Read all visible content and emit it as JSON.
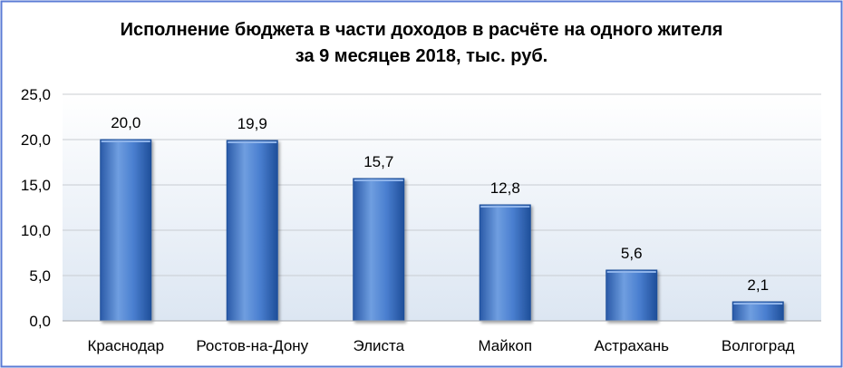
{
  "chart_data": {
    "type": "bar",
    "title_line1": "Исполнение бюджета в части доходов в расчёте на одного жителя",
    "title_line2": "за 9 месяцев 2018, тыс. руб.",
    "categories": [
      "Краснодар",
      "Ростов-на-Дону",
      "Элиста",
      "Майкоп",
      "Астрахань",
      "Волгоград"
    ],
    "values": [
      20.0,
      19.9,
      15.7,
      12.8,
      5.6,
      2.1
    ],
    "data_labels": [
      "20,0",
      "19,9",
      "15,7",
      "12,8",
      "5,6",
      "2,1"
    ],
    "y_ticks": [
      "0,0",
      "5,0",
      "10,0",
      "15,0",
      "20,0",
      "25,0"
    ],
    "ylim": [
      0,
      25
    ],
    "xlabel": "",
    "ylabel": "",
    "grid": true,
    "legend": "none",
    "colors": {
      "bar_light": "#6f9ee0",
      "bar_mid": "#3f72c4",
      "bar_dark": "#1f4f9a",
      "plot_bg_top": "#ffffff",
      "plot_bg_bottom": "#dce6f2",
      "grid": "#c8ccd2",
      "frame": "#5b7bd5"
    }
  }
}
